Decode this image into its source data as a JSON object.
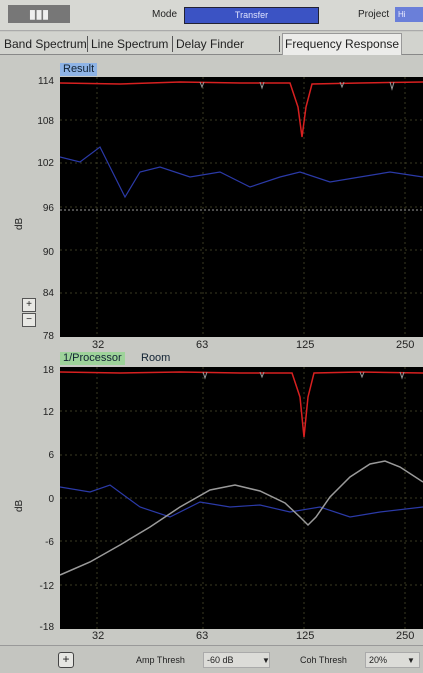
{
  "header": {
    "mode_label": "Mode",
    "mode_value": "Transfer",
    "project_label": "Project",
    "project_value": "Hi"
  },
  "tabs": [
    {
      "label": "Band Spectrum",
      "active": false
    },
    {
      "label": "Line Spectrum",
      "active": false
    },
    {
      "label": "Delay Finder",
      "active": false
    },
    {
      "label": "Frequency Response",
      "active": true
    }
  ],
  "result_panel": {
    "label": "Result",
    "ylabel": "dB",
    "yticks": [
      "114",
      "108",
      "102",
      "96",
      "90",
      "84",
      "78"
    ],
    "xticks": [
      "32",
      "63",
      "125",
      "250"
    ]
  },
  "transfer_panel": {
    "label_processor": "1/Processor",
    "label_room": "Room",
    "ylabel": "dB",
    "yticks": [
      "18",
      "12",
      "6",
      "0",
      "-6",
      "-12",
      "-18"
    ],
    "xticks": [
      "32",
      "63",
      "125",
      "250"
    ]
  },
  "bottom": {
    "amp_thresh_label": "Amp Thresh",
    "amp_thresh_value": "-60 dB",
    "coh_thresh_label": "Coh Thresh",
    "coh_thresh_value": "20%"
  },
  "colors": {
    "trace_red": "#d82020",
    "trace_grey": "#9a9a9a",
    "trace_blue": "#2b3aa8",
    "grid": "#4a4a2a"
  }
}
